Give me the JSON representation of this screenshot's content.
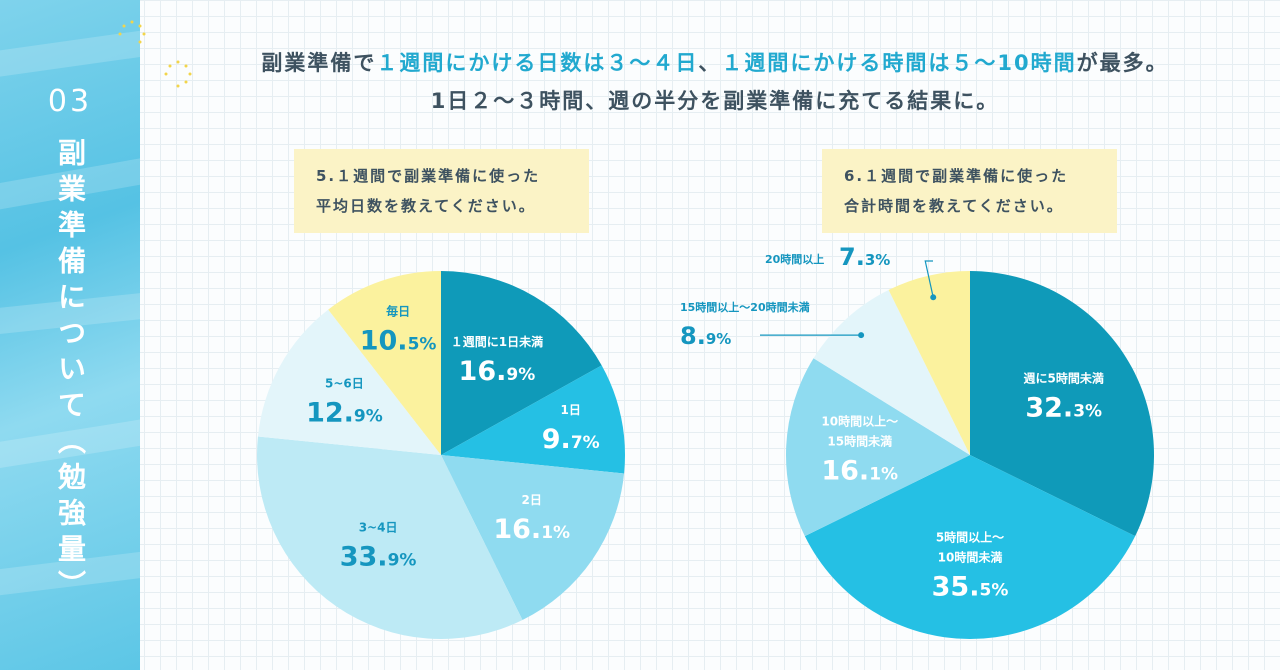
{
  "side": {
    "number": "03",
    "title": "副業準備について（勉強量）"
  },
  "headline": {
    "line1": [
      {
        "t": "副業準備で",
        "hl": false
      },
      {
        "t": "１週間にかける日数は３〜４日",
        "hl": true
      },
      {
        "t": "、",
        "hl": false
      },
      {
        "t": "１週間にかける時間は５〜10時間",
        "hl": true
      },
      {
        "t": "が最多。",
        "hl": false
      }
    ],
    "line2": "1日２〜３時間、週の半分を副業準備に充てる結果に。"
  },
  "chart_data": [
    {
      "type": "pie",
      "question": [
        "5.１週間で副業準備に使った",
        "平均日数を教えてください。"
      ],
      "slices": [
        {
          "label": [
            "１週間に1日未満"
          ],
          "value": 16.9,
          "int": "16.",
          "dec": "9",
          "color": "#0f9ab9",
          "text": "#ffffff"
        },
        {
          "label": [
            "1日"
          ],
          "value": 9.7,
          "int": "9.",
          "dec": "7",
          "color": "#25c0e4",
          "text": "#ffffff"
        },
        {
          "label": [
            "2日"
          ],
          "value": 16.1,
          "int": "16.",
          "dec": "1",
          "color": "#8fdbf0",
          "text": "#ffffff"
        },
        {
          "label": [
            "3~4日"
          ],
          "value": 33.9,
          "int": "33.",
          "dec": "9",
          "color": "#bdeaf5",
          "text": "#1596bf"
        },
        {
          "label": [
            "5~6日"
          ],
          "value": 12.9,
          "int": "12.",
          "dec": "9",
          "color": "#e3f5fa",
          "text": "#1596bf"
        },
        {
          "label": [
            "毎日"
          ],
          "value": 10.5,
          "int": "10.",
          "dec": "5",
          "color": "#fbf29e",
          "text": "#1596bf"
        }
      ]
    },
    {
      "type": "pie",
      "question": [
        "6.１週間で副業準備に使った",
        "合計時間を教えてください。"
      ],
      "slices": [
        {
          "label": [
            "週に5時間未満"
          ],
          "value": 32.3,
          "int": "32.",
          "dec": "3",
          "color": "#0f9ab9",
          "text": "#ffffff"
        },
        {
          "label": [
            "5時間以上〜",
            "10時間未満"
          ],
          "value": 35.5,
          "int": "35.",
          "dec": "5",
          "color": "#25c0e4",
          "text": "#ffffff"
        },
        {
          "label": [
            "10時間以上〜",
            "15時間未満"
          ],
          "value": 16.1,
          "int": "16.",
          "dec": "1",
          "color": "#8fdbf0",
          "text": "#ffffff"
        },
        {
          "label": [
            "15時間以上〜20時間未満"
          ],
          "value": 8.9,
          "int": "8.",
          "dec": "9",
          "color": "#e3f5fa",
          "text": "#1596bf",
          "callout": true
        },
        {
          "label": [
            "20時間以上"
          ],
          "value": 7.3,
          "int": "7.",
          "dec": "3",
          "color": "#fbf29e",
          "text": "#1596bf",
          "callout": true
        }
      ]
    }
  ]
}
